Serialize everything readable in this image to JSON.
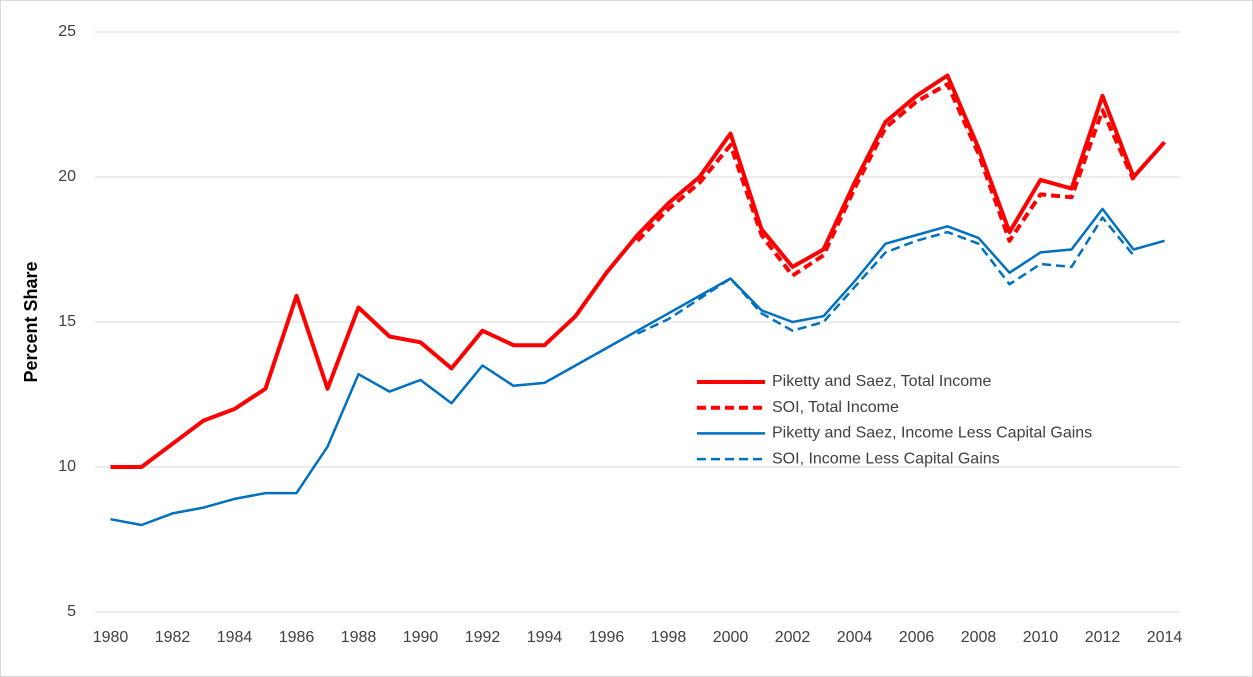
{
  "chart_data": {
    "type": "line",
    "y_label": "Percent Share",
    "x": [
      1980,
      1981,
      1982,
      1983,
      1984,
      1985,
      1986,
      1987,
      1988,
      1989,
      1990,
      1991,
      1992,
      1993,
      1994,
      1995,
      1996,
      1997,
      1998,
      1999,
      2000,
      2001,
      2002,
      2003,
      2004,
      2005,
      2006,
      2007,
      2008,
      2009,
      2010,
      2011,
      2012,
      2013,
      2014
    ],
    "series": [
      {
        "name": "Piketty and Saez, Total Income",
        "color": "#ff0000",
        "dash": "solid",
        "width": 4,
        "values": [
          10.0,
          10.0,
          10.8,
          11.6,
          12.0,
          12.7,
          15.9,
          12.7,
          15.5,
          14.5,
          14.3,
          13.4,
          14.7,
          14.2,
          14.2,
          15.2,
          16.7,
          18.0,
          19.1,
          20.0,
          21.5,
          18.2,
          16.9,
          17.5,
          19.8,
          21.9,
          22.8,
          23.5,
          21.0,
          18.1,
          19.9,
          19.6,
          22.8,
          20.0,
          21.2
        ]
      },
      {
        "name": "SOI, Total Income",
        "color": "#ff0000",
        "dash": "dashed",
        "width": 4,
        "values": [
          null,
          null,
          null,
          null,
          null,
          null,
          null,
          null,
          null,
          null,
          null,
          null,
          null,
          null,
          null,
          null,
          null,
          17.8,
          18.9,
          19.8,
          21.1,
          18.0,
          16.6,
          17.3,
          19.6,
          21.7,
          22.6,
          23.2,
          20.8,
          17.8,
          19.4,
          19.3,
          22.3,
          19.9,
          null
        ]
      },
      {
        "name": "Piketty and Saez, Income Less Capital Gains",
        "color": "#0070c0",
        "dash": "solid",
        "width": 2.5,
        "values": [
          8.2,
          8.0,
          8.4,
          8.6,
          8.9,
          9.1,
          9.1,
          10.7,
          13.2,
          12.6,
          13.0,
          12.2,
          13.5,
          12.8,
          12.9,
          13.5,
          14.1,
          14.7,
          15.3,
          15.9,
          16.5,
          15.4,
          15.0,
          15.2,
          16.4,
          17.7,
          18.0,
          18.3,
          17.9,
          16.7,
          17.4,
          17.5,
          18.9,
          17.5,
          17.8
        ]
      },
      {
        "name": "SOI, Income Less Capital Gains",
        "color": "#0070c0",
        "dash": "dashed",
        "width": 2.5,
        "values": [
          null,
          null,
          null,
          null,
          null,
          null,
          null,
          null,
          null,
          null,
          null,
          null,
          null,
          null,
          null,
          null,
          null,
          14.6,
          15.1,
          15.8,
          16.5,
          15.3,
          14.7,
          15.0,
          16.2,
          17.4,
          17.8,
          18.1,
          17.7,
          16.3,
          17.0,
          16.9,
          18.6,
          17.3,
          null
        ]
      }
    ],
    "xlim": [
      1979.5,
      2014.5
    ],
    "xticks": [
      1980,
      1982,
      1984,
      1986,
      1988,
      1990,
      1992,
      1994,
      1996,
      1998,
      2000,
      2002,
      2004,
      2006,
      2008,
      2010,
      2012,
      2014
    ],
    "ylim": [
      5,
      25
    ],
    "yticks": [
      5,
      10,
      15,
      20,
      25
    ],
    "grid": true,
    "legend": "right"
  }
}
